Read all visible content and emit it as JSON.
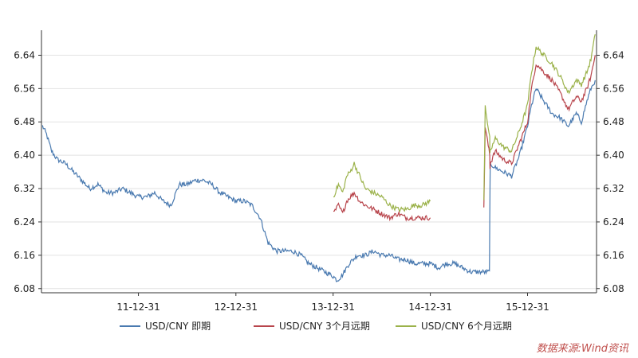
{
  "chart_data": {
    "type": "line",
    "title": "",
    "xlabel": "",
    "ylabel": "",
    "x_tick_labels": [
      "11-12-31",
      "12-12-31",
      "13-12-31",
      "14-12-31",
      "15-12-31"
    ],
    "y_tick_labels": [
      "6.08",
      "6.16",
      "6.24",
      "6.32",
      "6.40",
      "6.48",
      "6.56",
      "6.64"
    ],
    "ylim": [
      6.07,
      6.7
    ],
    "grid": true,
    "dual_y_axis": true,
    "legend_position": "bottom",
    "series": [
      {
        "name": "USD/CNY 即期",
        "color": "#4a7ab0",
        "points": [
          [
            "2011-01-05",
            6.47
          ],
          [
            "2011-01-20",
            6.45
          ],
          [
            "2011-02-08",
            6.41
          ],
          [
            "2011-03-01",
            6.39
          ],
          [
            "2011-04-01",
            6.38
          ],
          [
            "2011-05-01",
            6.36
          ],
          [
            "2011-06-01",
            6.34
          ],
          [
            "2011-07-01",
            6.32
          ],
          [
            "2011-08-01",
            6.33
          ],
          [
            "2011-09-01",
            6.31
          ],
          [
            "2011-10-01",
            6.31
          ],
          [
            "2011-11-01",
            6.32
          ],
          [
            "2011-12-31",
            6.3
          ],
          [
            "2012-02-01",
            6.3
          ],
          [
            "2012-03-01",
            6.31
          ],
          [
            "2012-04-01",
            6.29
          ],
          [
            "2012-05-01",
            6.28
          ],
          [
            "2012-06-01",
            6.33
          ],
          [
            "2012-07-01",
            6.33
          ],
          [
            "2012-08-01",
            6.34
          ],
          [
            "2012-09-01",
            6.34
          ],
          [
            "2012-10-01",
            6.33
          ],
          [
            "2012-11-01",
            6.31
          ],
          [
            "2012-12-31",
            6.29
          ],
          [
            "2013-02-01",
            6.29
          ],
          [
            "2013-03-01",
            6.28
          ],
          [
            "2013-04-01",
            6.25
          ],
          [
            "2013-05-01",
            6.19
          ],
          [
            "2013-06-01",
            6.17
          ],
          [
            "2013-07-01",
            6.17
          ],
          [
            "2013-08-01",
            6.17
          ],
          [
            "2013-09-01",
            6.16
          ],
          [
            "2013-10-01",
            6.14
          ],
          [
            "2013-11-01",
            6.13
          ],
          [
            "2013-12-31",
            6.11
          ],
          [
            "2014-01-15",
            6.1
          ],
          [
            "2014-02-01",
            6.11
          ],
          [
            "2014-03-01",
            6.14
          ],
          [
            "2014-04-01",
            6.16
          ],
          [
            "2014-05-01",
            6.16
          ],
          [
            "2014-06-01",
            6.17
          ],
          [
            "2014-07-01",
            6.16
          ],
          [
            "2014-08-01",
            6.16
          ],
          [
            "2014-09-01",
            6.15
          ],
          [
            "2014-10-01",
            6.15
          ],
          [
            "2014-11-01",
            6.14
          ],
          [
            "2014-12-31",
            6.14
          ],
          [
            "2015-02-01",
            6.13
          ],
          [
            "2015-03-01",
            6.14
          ],
          [
            "2015-04-01",
            6.14
          ],
          [
            "2015-05-01",
            6.13
          ],
          [
            "2015-06-01",
            6.12
          ],
          [
            "2015-07-01",
            6.12
          ],
          [
            "2015-08-10",
            6.12
          ],
          [
            "2015-08-11",
            6.24
          ],
          [
            "2015-08-13",
            6.38
          ],
          [
            "2015-09-01",
            6.37
          ],
          [
            "2015-10-01",
            6.36
          ],
          [
            "2015-11-01",
            6.35
          ],
          [
            "2015-12-01",
            6.4
          ],
          [
            "2015-12-31",
            6.47
          ],
          [
            "2016-01-15",
            6.52
          ],
          [
            "2016-02-01",
            6.56
          ],
          [
            "2016-03-01",
            6.53
          ],
          [
            "2016-04-01",
            6.5
          ],
          [
            "2016-05-01",
            6.49
          ],
          [
            "2016-06-01",
            6.47
          ],
          [
            "2016-07-01",
            6.5
          ],
          [
            "2016-07-20",
            6.48
          ],
          [
            "2016-08-10",
            6.53
          ],
          [
            "2016-08-25",
            6.56
          ],
          [
            "2016-09-10",
            6.58
          ]
        ]
      },
      {
        "name": "USD/CNY 3个月远期",
        "color": "#b8454c",
        "points": [
          [
            "2014-01-01",
            6.26
          ],
          [
            "2014-01-20",
            6.28
          ],
          [
            "2014-02-05",
            6.26
          ],
          [
            "2014-02-20",
            6.29
          ],
          [
            "2014-03-05",
            6.3
          ],
          [
            "2014-03-20",
            6.31
          ],
          [
            "2014-04-10",
            6.29
          ],
          [
            "2014-05-01",
            6.28
          ],
          [
            "2014-06-01",
            6.27
          ],
          [
            "2014-07-01",
            6.26
          ],
          [
            "2014-08-01",
            6.25
          ],
          [
            "2014-09-01",
            6.26
          ],
          [
            "2014-10-01",
            6.25
          ],
          [
            "2014-11-01",
            6.25
          ],
          [
            "2014-12-01",
            6.25
          ],
          [
            "2014-12-31",
            6.25
          ],
          [
            "2015-07-20",
            6.27
          ],
          [
            "2015-07-25",
            6.47
          ],
          [
            "2015-08-11",
            6.4
          ],
          [
            "2015-08-12",
            6.37
          ],
          [
            "2015-08-13",
            6.38
          ],
          [
            "2015-09-01",
            6.41
          ],
          [
            "2015-10-01",
            6.39
          ],
          [
            "2015-11-01",
            6.38
          ],
          [
            "2015-12-01",
            6.43
          ],
          [
            "2015-12-31",
            6.48
          ],
          [
            "2016-01-15",
            6.56
          ],
          [
            "2016-02-01",
            6.62
          ],
          [
            "2016-03-01",
            6.6
          ],
          [
            "2016-04-01",
            6.58
          ],
          [
            "2016-05-01",
            6.55
          ],
          [
            "2016-06-01",
            6.51
          ],
          [
            "2016-07-01",
            6.54
          ],
          [
            "2016-07-20",
            6.53
          ],
          [
            "2016-08-10",
            6.56
          ],
          [
            "2016-08-25",
            6.59
          ],
          [
            "2016-09-10",
            6.64
          ]
        ]
      },
      {
        "name": "USD/CNY 6个月远期",
        "color": "#9bb24a",
        "points": [
          [
            "2014-01-01",
            6.3
          ],
          [
            "2014-01-20",
            6.33
          ],
          [
            "2014-02-05",
            6.31
          ],
          [
            "2014-02-20",
            6.35
          ],
          [
            "2014-03-05",
            6.36
          ],
          [
            "2014-03-20",
            6.38
          ],
          [
            "2014-04-10",
            6.35
          ],
          [
            "2014-05-01",
            6.32
          ],
          [
            "2014-06-01",
            6.31
          ],
          [
            "2014-07-01",
            6.3
          ],
          [
            "2014-08-01",
            6.28
          ],
          [
            "2014-09-01",
            6.27
          ],
          [
            "2014-10-01",
            6.27
          ],
          [
            "2014-11-01",
            6.28
          ],
          [
            "2014-12-01",
            6.28
          ],
          [
            "2014-12-31",
            6.29
          ],
          [
            "2015-07-20",
            6.29
          ],
          [
            "2015-07-25",
            6.52
          ],
          [
            "2015-08-11",
            6.44
          ],
          [
            "2015-08-12",
            6.4
          ],
          [
            "2015-08-13",
            6.41
          ],
          [
            "2015-09-01",
            6.44
          ],
          [
            "2015-10-01",
            6.42
          ],
          [
            "2015-11-01",
            6.41
          ],
          [
            "2015-12-01",
            6.46
          ],
          [
            "2015-12-31",
            6.52
          ],
          [
            "2016-01-15",
            6.6
          ],
          [
            "2016-02-01",
            6.66
          ],
          [
            "2016-03-01",
            6.64
          ],
          [
            "2016-04-01",
            6.62
          ],
          [
            "2016-05-01",
            6.59
          ],
          [
            "2016-06-01",
            6.55
          ],
          [
            "2016-07-01",
            6.58
          ],
          [
            "2016-07-20",
            6.57
          ],
          [
            "2016-08-10",
            6.6
          ],
          [
            "2016-08-25",
            6.63
          ],
          [
            "2016-09-10",
            6.69
          ]
        ]
      }
    ]
  },
  "source_note": "数据来源:Wind资讯"
}
